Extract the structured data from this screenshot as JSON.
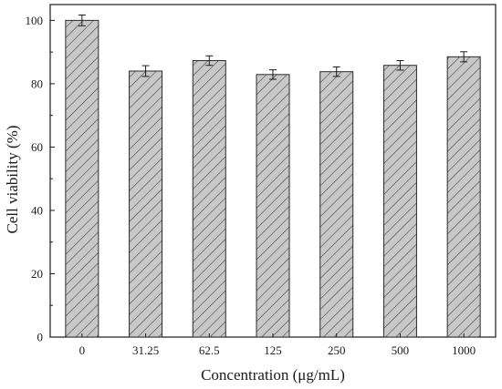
{
  "chart_data": {
    "type": "bar",
    "title": "",
    "xlabel": "Concentration (μg/mL)",
    "ylabel": "Cell viability (%)",
    "categories": [
      "0",
      "31.25",
      "62.5",
      "125",
      "250",
      "500",
      "1000"
    ],
    "values": [
      100.0,
      84.0,
      87.3,
      82.9,
      83.8,
      85.8,
      88.5
    ],
    "errors": [
      1.7,
      1.7,
      1.5,
      1.5,
      1.5,
      1.5,
      1.6
    ],
    "ylim": [
      0,
      105
    ],
    "yticks": [
      0,
      20,
      40,
      60,
      80,
      100
    ],
    "grid": false,
    "legend": "none",
    "bar_fill": "#c8c8c8",
    "bar_hatch": "diagonal",
    "bar_stroke": "#2a2a2a"
  }
}
